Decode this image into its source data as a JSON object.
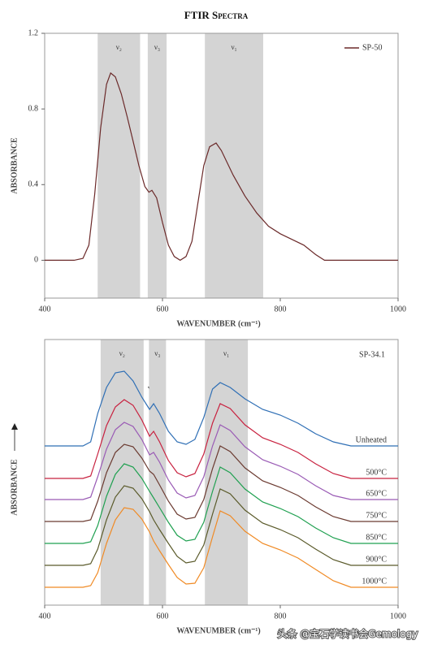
{
  "chart_data": [
    {
      "type": "line",
      "title": "FTIR Spectra",
      "xlabel": "WAVENUMBER (cm⁻¹)",
      "ylabel": "ABSORBANCE",
      "xlim": [
        400,
        1000
      ],
      "xticks": [
        400,
        600,
        800,
        1000
      ],
      "ylim": [
        -0.2,
        1.2
      ],
      "yticks": [
        0,
        0.4,
        0.8,
        1.2
      ],
      "legend": "top-right",
      "bands": [
        {
          "label": "ν₂",
          "range": [
            490,
            562
          ]
        },
        {
          "label": "ν₃",
          "range": [
            575,
            607
          ]
        },
        {
          "label": "ν₁",
          "range": [
            672,
            771
          ]
        }
      ],
      "x": [
        400,
        450,
        465,
        475,
        485,
        495,
        505,
        512,
        520,
        530,
        540,
        550,
        560,
        570,
        577,
        582,
        590,
        600,
        610,
        620,
        630,
        640,
        650,
        660,
        670,
        680,
        691,
        700,
        720,
        740,
        760,
        780,
        800,
        820,
        840,
        860,
        875,
        900,
        1000
      ],
      "series": [
        {
          "name": "SP-50",
          "color": "#6b2a2a",
          "values": [
            0,
            0,
            0.01,
            0.08,
            0.35,
            0.7,
            0.93,
            0.99,
            0.97,
            0.88,
            0.76,
            0.63,
            0.5,
            0.39,
            0.36,
            0.37,
            0.33,
            0.2,
            0.08,
            0.02,
            0,
            0.02,
            0.1,
            0.3,
            0.5,
            0.6,
            0.62,
            0.58,
            0.45,
            0.34,
            0.25,
            0.18,
            0.14,
            0.11,
            0.08,
            0.03,
            0,
            0,
            0
          ]
        }
      ]
    },
    {
      "type": "line",
      "xlabel": "WAVENUMBER (cm⁻¹)",
      "ylabel": "ABSORBANCE",
      "annotation": "SP-34.1",
      "xlim": [
        400,
        1000
      ],
      "xticks": [
        400,
        600,
        800,
        1000
      ],
      "ylim": [
        0,
        327
      ],
      "legend": "line-end",
      "bands": [
        {
          "label": "ν₂",
          "range": [
            495,
            568
          ]
        },
        {
          "label": "ν₃",
          "range": [
            577,
            606
          ]
        },
        {
          "label": "ν₁",
          "range": [
            672,
            745
          ]
        }
      ],
      "x": [
        400,
        465,
        478,
        490,
        505,
        520,
        535,
        550,
        565,
        578,
        585,
        595,
        610,
        625,
        640,
        655,
        670,
        685,
        698,
        715,
        740,
        770,
        800,
        830,
        860,
        890,
        920,
        1000
      ],
      "series": [
        {
          "name": "Unheated",
          "color": "#2f6fb5",
          "values": [
            196,
            196,
            201,
            236,
            268,
            286,
            288,
            276,
            256,
            241,
            248,
            236,
            214,
            201,
            198,
            204,
            231,
            266,
            274,
            268,
            254,
            241,
            234,
            224,
            211,
            201,
            196,
            196
          ]
        },
        {
          "name": "500°C",
          "color": "#c8213f",
          "values": [
            156,
            156,
            159,
            186,
            221,
            244,
            253,
            246,
            228,
            208,
            214,
            201,
            178,
            163,
            158,
            162,
            186,
            224,
            248,
            242,
            222,
            206,
            198,
            188,
            174,
            162,
            156,
            156
          ]
        },
        {
          "name": "650°C",
          "color": "#9a5bb5",
          "values": [
            130,
            130,
            133,
            158,
            192,
            216,
            225,
            220,
            204,
            185,
            188,
            176,
            154,
            138,
            132,
            135,
            158,
            196,
            222,
            215,
            195,
            179,
            171,
            161,
            147,
            135,
            130,
            130
          ]
        },
        {
          "name": "750°C",
          "color": "#6b3a30",
          "values": [
            103,
            103,
            105,
            128,
            163,
            188,
            198,
            195,
            181,
            165,
            161,
            148,
            128,
            112,
            106,
            108,
            130,
            168,
            196,
            189,
            169,
            153,
            145,
            135,
            121,
            109,
            103,
            103
          ]
        },
        {
          "name": "850°C",
          "color": "#1fa050",
          "values": [
            76,
            76,
            78,
            98,
            134,
            161,
            174,
            170,
            156,
            140,
            132,
            120,
            102,
            86,
            79,
            81,
            102,
            140,
            170,
            163,
            143,
            127,
            119,
            109,
            95,
            83,
            76,
            76
          ]
        },
        {
          "name": "900°C",
          "color": "#5a5a2a",
          "values": [
            49,
            49,
            51,
            69,
            105,
            133,
            147,
            144,
            131,
            115,
            105,
            93,
            76,
            60,
            52,
            54,
            74,
            112,
            143,
            137,
            117,
            101,
            93,
            83,
            69,
            56,
            49,
            49
          ]
        },
        {
          "name": "1000°C",
          "color": "#f08a24",
          "values": [
            22,
            22,
            24,
            40,
            76,
            105,
            120,
            118,
            106,
            90,
            79,
            67,
            50,
            34,
            26,
            27,
            46,
            84,
            116,
            110,
            91,
            76,
            68,
            58,
            44,
            30,
            22,
            22
          ]
        }
      ]
    }
  ],
  "watermark": "头条 @宝石学读书会Gemology"
}
